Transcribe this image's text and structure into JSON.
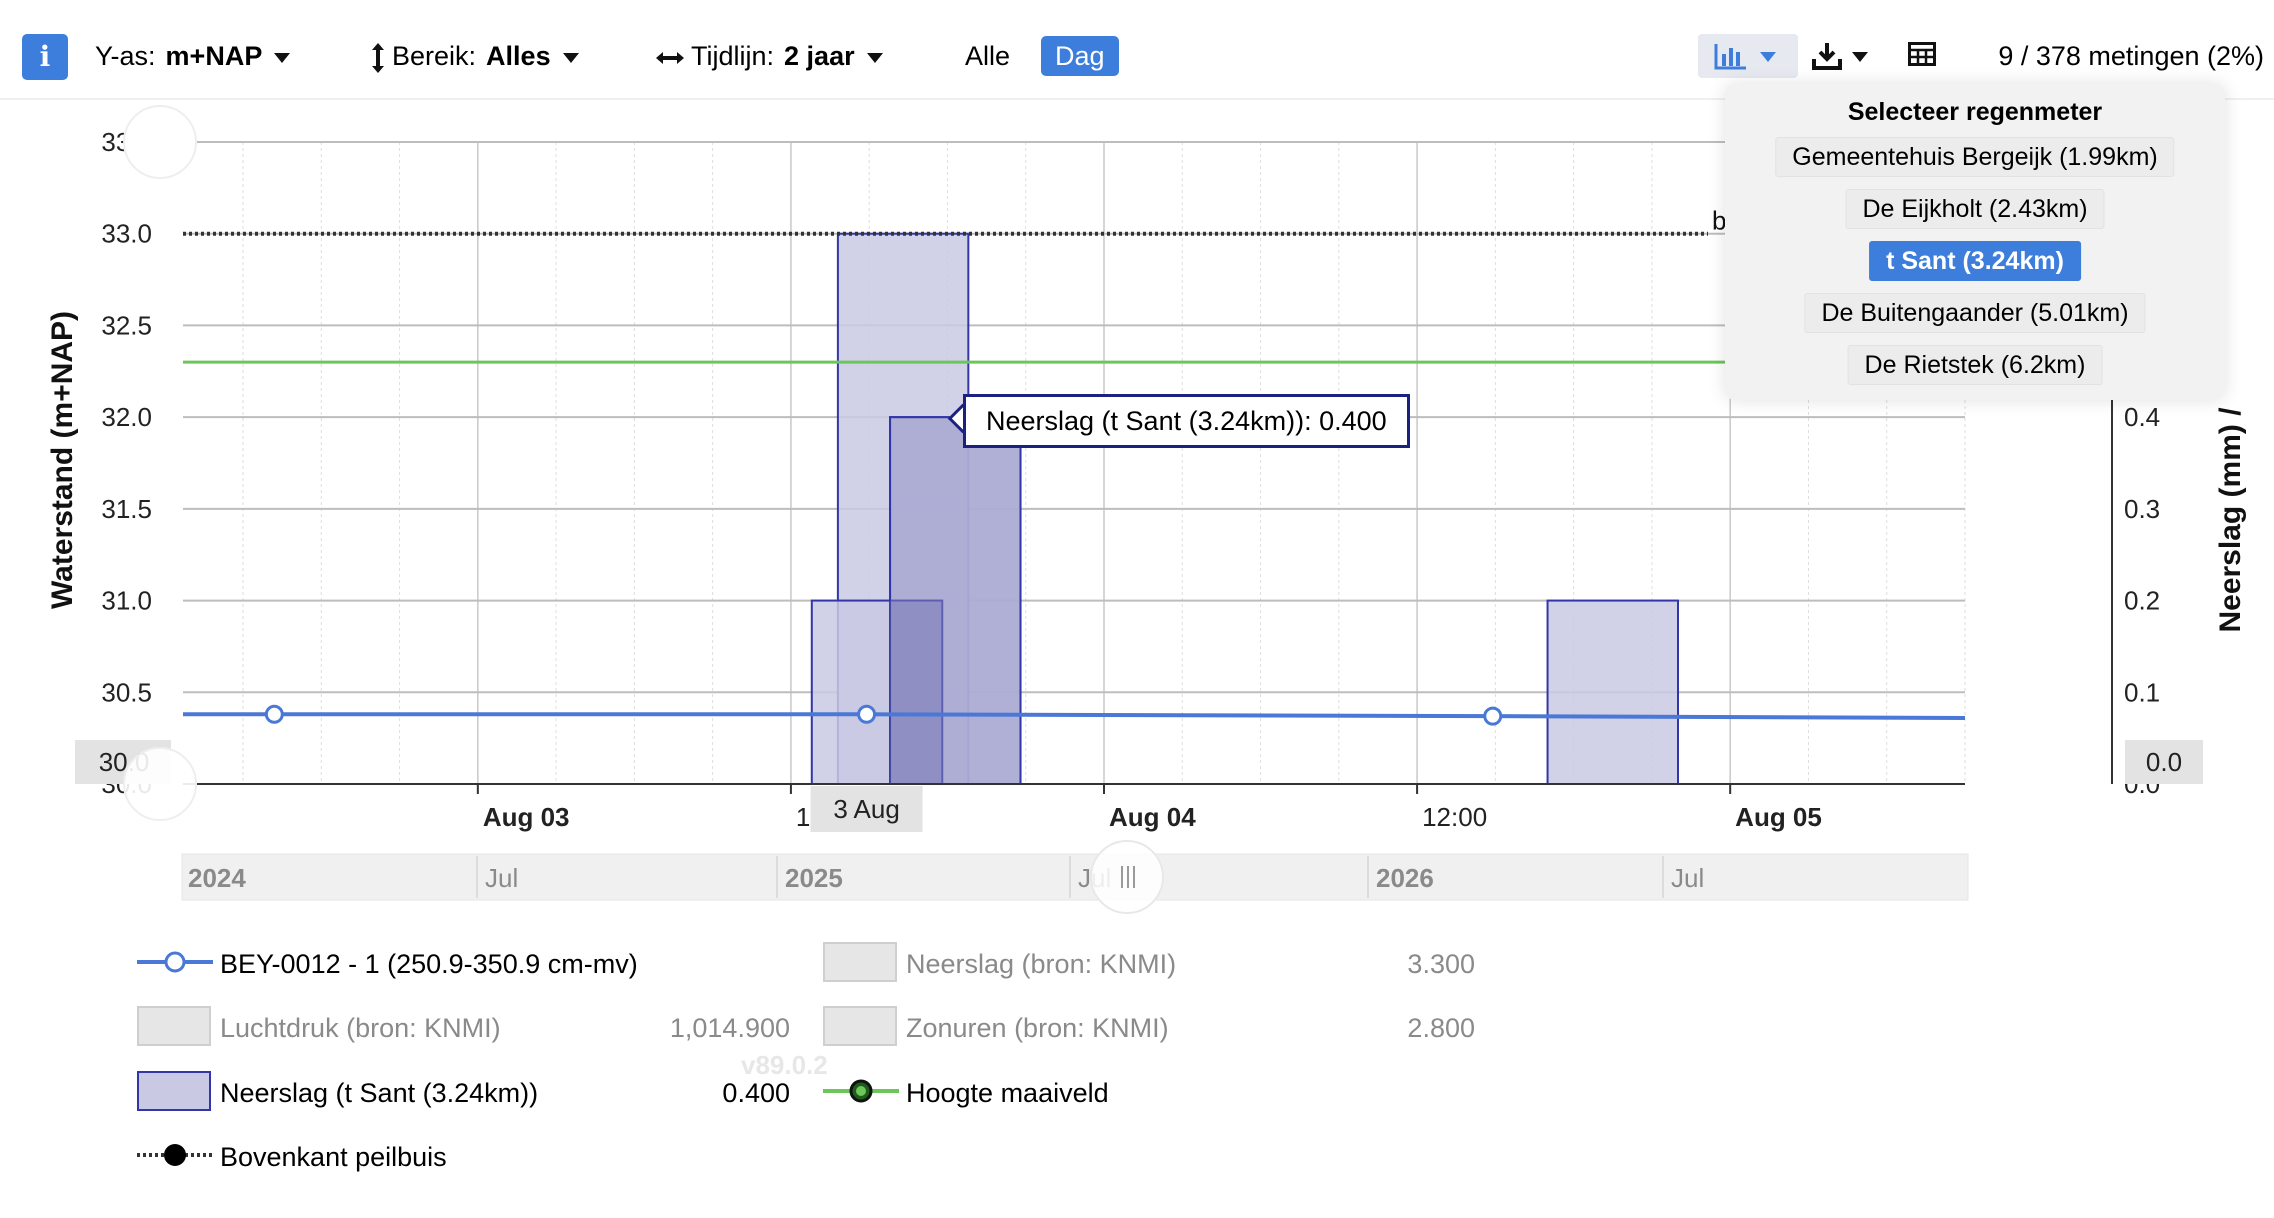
{
  "toolbar": {
    "info_icon": "i",
    "yaxis_label": "Y-as:",
    "yaxis_value": "m+NAP",
    "bereik_label": "Bereik:",
    "bereik_value": "Alles",
    "tijdlijn_label": "Tijdlijn:",
    "tijdlijn_value": "2 jaar",
    "alle_label": "Alle",
    "dag_label": "Dag",
    "count_label": "9 / 378 metingen (2%)",
    "icons": [
      "bar-chart-icon",
      "download-icon",
      "table-icon"
    ],
    "accent_color": "#3d7ddb"
  },
  "dropdown": {
    "title": "Selecteer regenmeter",
    "items": [
      {
        "label": "Gemeentehuis Bergeijk (1.99km)",
        "selected": false
      },
      {
        "label": "De Eijkholt (2.43km)",
        "selected": false
      },
      {
        "label": "t Sant (3.24km)",
        "selected": true
      },
      {
        "label": "De Buitengaander (5.01km)",
        "selected": false
      },
      {
        "label": "De Rietstek (6.2km)",
        "selected": false
      }
    ]
  },
  "tooltip": {
    "text": "Neerslag (t Sant (3.24km)): 0.400"
  },
  "version": "v89.0.2",
  "legend": {
    "items": [
      {
        "label": "BEY-0012 - 1 (250.9-350.9 cm-mv)",
        "value": "",
        "muted": false
      },
      {
        "label": "Neerslag (bron: KNMI)",
        "value": "3.300",
        "muted": true
      },
      {
        "label": "Luchtdruk (bron: KNMI)",
        "value": "1,014.900",
        "muted": true
      },
      {
        "label": "Zonuren (bron: KNMI)",
        "value": "2.800",
        "muted": true
      },
      {
        "label": "Neerslag (t Sant (3.24km))",
        "value": "0.400",
        "muted": false
      },
      {
        "label": "Hoogte maaiveld",
        "value": "",
        "muted": false
      },
      {
        "label": "Bovenkant peilbuis",
        "value": "",
        "muted": false
      }
    ]
  },
  "chart_data": {
    "type": "line",
    "ylabel": "Waterstand (m+NAP)",
    "y2label": "Neerslag (mm) /",
    "ylim": [
      30.0,
      33.5
    ],
    "y2lim": [
      0.0,
      0.7
    ],
    "yticks": [
      "30.0",
      "30.5",
      "31.0",
      "31.5",
      "32.0",
      "32.5",
      "33.0",
      "33.5"
    ],
    "y2ticks": [
      "0.0",
      "0.1",
      "0.2",
      "0.3",
      "0.4"
    ],
    "xticks": [
      {
        "label": "Aug 03",
        "bold": true,
        "t": 15
      },
      {
        "label": "12:00",
        "bold": false,
        "t": 27
      },
      {
        "label": "Aug 04",
        "bold": true,
        "t": 39
      },
      {
        "label": "12:00",
        "bold": false,
        "t": 51
      },
      {
        "label": "Aug 05",
        "bold": true,
        "t": 63
      }
    ],
    "xlim_hours": [
      3.7,
      72
    ],
    "crosshair_label": "3 Aug",
    "crosshair_t": 29.9,
    "y_crosshair_label": "30.0",
    "y2_crosshair_label": "0.0",
    "grid": true,
    "series": [
      {
        "name": "BEY-0012 - 1 (250.9-350.9 cm-mv)",
        "type": "line",
        "color": "#4a78d6",
        "points": [
          [
            3.7,
            30.38
          ],
          [
            7.2,
            30.38
          ],
          [
            29.9,
            30.38
          ],
          [
            53.9,
            30.37
          ],
          [
            72,
            30.36
          ]
        ],
        "markers_t": [
          7.2,
          29.9,
          53.9
        ]
      },
      {
        "name": "Neerslag (t Sant (3.24km))",
        "type": "bar",
        "axis": "y2",
        "color": "#c9c9e3",
        "border": "#3236a8",
        "bars": [
          {
            "t0": 28.8,
            "t1": 33.8,
            "value": 0.6
          },
          {
            "t0": 30.8,
            "t1": 35.8,
            "value": 0.4
          },
          {
            "t0": 27.8,
            "t1": 32.8,
            "value": 0.2
          },
          {
            "t0": 56.0,
            "t1": 61.0,
            "value": 0.2
          }
        ]
      },
      {
        "name": "Hoogte maaiveld",
        "type": "hline",
        "value": 32.3,
        "color": "#6cc65a"
      },
      {
        "name": "Bovenkant peilbuis",
        "type": "hline",
        "value": 33.0,
        "color": "#333333",
        "dotted": true,
        "label": "b"
      }
    ],
    "navigator": {
      "labels": [
        {
          "label": "2024",
          "bold": true
        },
        {
          "label": "Jul",
          "bold": false
        },
        {
          "label": "2025",
          "bold": true
        },
        {
          "label": "Jul",
          "bold": false
        },
        {
          "label": "2026",
          "bold": true
        },
        {
          "label": "Jul",
          "bold": false
        }
      ]
    }
  }
}
